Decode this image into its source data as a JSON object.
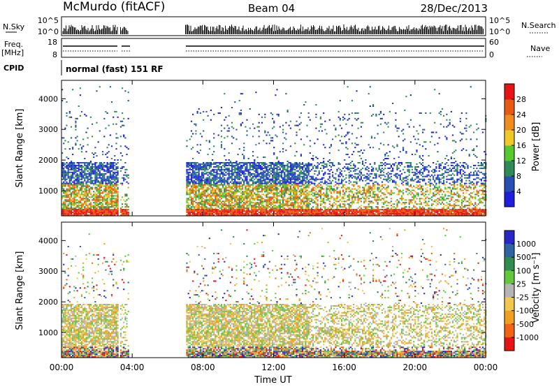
{
  "header": {
    "station": "McMurdo (fitACF)",
    "beam": "Beam 04",
    "date": "28/Dec/2013"
  },
  "params": {
    "nsky_label": "N.Sky",
    "nsky_ticks": [
      "10^5",
      "10^0"
    ],
    "nsearch_label": "N.Search",
    "nsearch_ticks": [
      "10^5",
      "10^0"
    ],
    "freq_label": "Freq.",
    "freq_unit": "[MHz]",
    "freq_ticks": [
      "18",
      "8"
    ],
    "nave_label": "Nave",
    "nave_ticks": [
      "60",
      "0"
    ],
    "cpid_label": "CPID",
    "cpid_value": "normal (fast) 151 RF"
  },
  "chart_data": [
    {
      "type": "heatmap",
      "name": "power",
      "xlabel": "",
      "ylabel": "Slant Range [km]",
      "x_range_hours": [
        0,
        24
      ],
      "ylim": [
        180,
        4600
      ],
      "yticks": [
        "1000",
        "2000",
        "3000",
        "4000"
      ],
      "colorbar": {
        "label": "Power [dB]",
        "ticks": [
          "4",
          "8",
          "12",
          "16",
          "20",
          "24",
          "28"
        ],
        "colors": [
          "#1e1edc",
          "#2850b4",
          "#2e8b57",
          "#55c832",
          "#f0c828",
          "#f08c1e",
          "#e65a14",
          "#e61414"
        ]
      },
      "data_gaps_hours": [
        [
          3.2,
          3.3
        ],
        [
          3.8,
          7.0
        ]
      ]
    },
    {
      "type": "heatmap",
      "name": "velocity",
      "xlabel": "Time UT",
      "ylabel": "Slant Range [km]",
      "x_range_hours": [
        0,
        24
      ],
      "xticks": [
        "00:00",
        "04:00",
        "08:00",
        "12:00",
        "16:00",
        "20:00",
        "00:00"
      ],
      "ylim": [
        180,
        4600
      ],
      "yticks": [
        "1000",
        "2000",
        "3000",
        "4000"
      ],
      "colorbar": {
        "label": "Velocity [m s⁻¹]",
        "ticks": [
          "1000",
          "500",
          "100",
          "25",
          "-25",
          "-100",
          "-500",
          "-1000"
        ],
        "colors": [
          "#2828c8",
          "#2e64a0",
          "#328c50",
          "#64c83c",
          "#b4b4b4",
          "#f0c850",
          "#f0a01e",
          "#f06414",
          "#e61414"
        ]
      },
      "data_gaps_hours": [
        [
          3.2,
          3.3
        ],
        [
          3.8,
          7.0
        ]
      ]
    }
  ]
}
